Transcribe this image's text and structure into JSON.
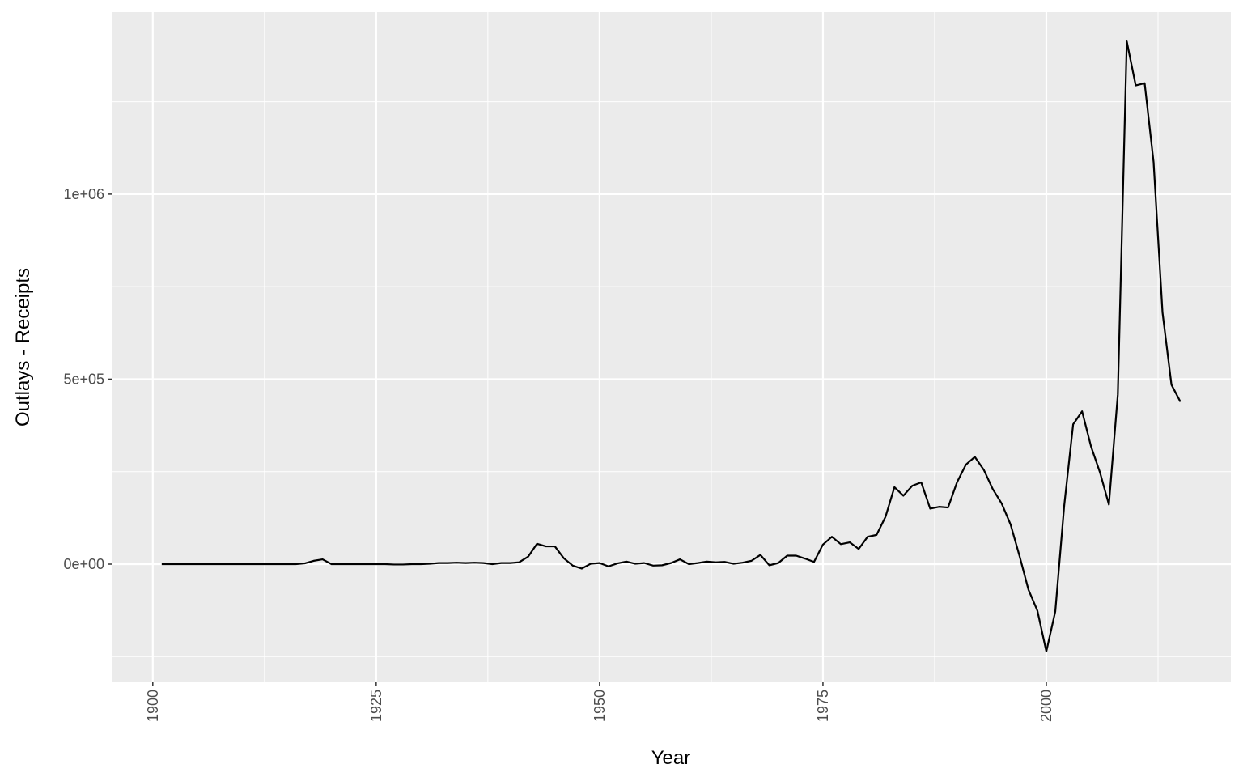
{
  "chart_data": {
    "type": "line",
    "x_label": "Year",
    "y_label": "Outlays - Receipts",
    "x": [
      1901,
      1902,
      1903,
      1904,
      1905,
      1906,
      1907,
      1908,
      1909,
      1910,
      1911,
      1912,
      1913,
      1914,
      1915,
      1916,
      1917,
      1918,
      1919,
      1920,
      1921,
      1922,
      1923,
      1924,
      1925,
      1926,
      1927,
      1928,
      1929,
      1930,
      1931,
      1932,
      1933,
      1934,
      1935,
      1936,
      1937,
      1938,
      1939,
      1940,
      1941,
      1942,
      1943,
      1944,
      1945,
      1946,
      1947,
      1948,
      1949,
      1950,
      1951,
      1952,
      1953,
      1954,
      1955,
      1956,
      1957,
      1958,
      1959,
      1960,
      1961,
      1962,
      1963,
      1964,
      1965,
      1966,
      1967,
      1968,
      1969,
      1970,
      1971,
      1972,
      1973,
      1974,
      1975,
      1976,
      1977,
      1978,
      1979,
      1980,
      1981,
      1982,
      1983,
      1984,
      1985,
      1986,
      1987,
      1988,
      1989,
      1990,
      1991,
      1992,
      1993,
      1994,
      1995,
      1996,
      1997,
      1998,
      1999,
      2000,
      2001,
      2002,
      2003,
      2004,
      2005,
      2006,
      2007,
      2008,
      2009,
      2010,
      2011,
      2012,
      2013,
      2014,
      2015
    ],
    "series": [
      {
        "color": "#000000",
        "values": [
          0,
          0,
          0,
          0,
          0,
          0,
          0,
          0,
          0,
          0,
          0,
          0,
          0,
          0,
          0,
          0,
          2000,
          9000,
          13000,
          0,
          0,
          0,
          0,
          0,
          0,
          0,
          -1000,
          -1000,
          0,
          0,
          1000,
          3000,
          3000,
          4000,
          3000,
          4000,
          3000,
          0,
          3000,
          3000,
          5000,
          20000,
          55000,
          48000,
          48000,
          16000,
          -4000,
          -12000,
          1000,
          3000,
          -6000,
          2000,
          7000,
          1000,
          3000,
          -4000,
          -3000,
          3000,
          13000,
          0,
          3000,
          7000,
          5000,
          6000,
          1000,
          4000,
          9000,
          25000,
          -3000,
          3000,
          23000,
          23000,
          15000,
          6000,
          53000,
          74000,
          54000,
          59000,
          41000,
          74000,
          79000,
          128000,
          208000,
          185000,
          212000,
          221000,
          150000,
          155000,
          153000,
          221000,
          269000,
          290000,
          255000,
          203000,
          164000,
          107000,
          22000,
          -69000,
          -126000,
          -236000,
          -128000,
          158000,
          378000,
          413000,
          318000,
          248000,
          161000,
          459000,
          1413000,
          1294000,
          1300000,
          1087000,
          680000,
          485000,
          439000
        ]
      }
    ],
    "xlim": [
      1895.4,
      2020.65
    ],
    "ylim": [
      -319400,
      1492000
    ],
    "xticks": [
      1900,
      1925,
      1950,
      1975,
      2000
    ],
    "xminor": [
      1912.5,
      1937.5,
      1962.5,
      1987.5,
      2012.5
    ],
    "yticks": [
      {
        "value": 0,
        "label": "0e+00"
      },
      {
        "value": 500000,
        "label": "5e+05"
      },
      {
        "value": 1000000,
        "label": "1e+06"
      }
    ],
    "yminor": [
      -250000,
      250000,
      750000,
      1250000
    ],
    "grid": true
  }
}
